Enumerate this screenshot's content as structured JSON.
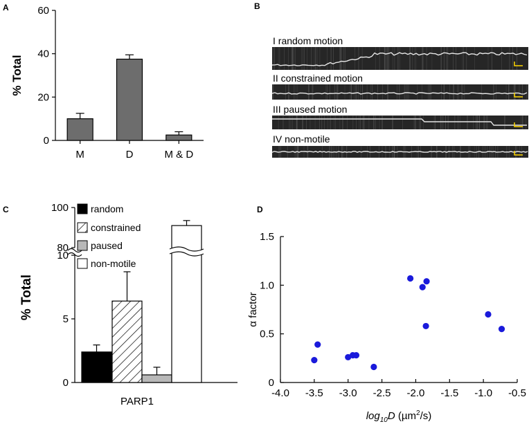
{
  "chart_data": [
    {
      "id": "A",
      "type": "bar",
      "title": "",
      "panel_letter": "A",
      "categories": [
        "M",
        "D",
        "M & D"
      ],
      "values": [
        10,
        37.5,
        2.5
      ],
      "errors": [
        2.5,
        2,
        1.5
      ],
      "xlabel": "",
      "ylabel": "% Total",
      "ylim": [
        0,
        60
      ],
      "yticks": [
        0,
        20,
        40,
        60
      ],
      "bar_color": "#6d6d6d"
    },
    {
      "id": "B",
      "type": "kymograph-panel",
      "panel_letter": "B",
      "rows": [
        {
          "label": "I random motion"
        },
        {
          "label": "II constrained motion"
        },
        {
          "label": "III paused motion"
        },
        {
          "label": "IV non-motile"
        }
      ],
      "scale_color": "#ffd700"
    },
    {
      "id": "C",
      "type": "bar",
      "panel_letter": "C",
      "categories": [
        "random",
        "constrained",
        "paused",
        "non-motile"
      ],
      "values": [
        2.4,
        6.4,
        0.6,
        91
      ],
      "errors": [
        0.55,
        2.3,
        0.6,
        2.5
      ],
      "xlabel": "PARP1",
      "ylabel": "% Total",
      "axis_break": {
        "lower": [
          0,
          10
        ],
        "upper": [
          80,
          100
        ]
      },
      "yticks_lower": [
        0,
        5,
        10
      ],
      "yticks_upper": [
        80,
        100
      ],
      "legend": [
        {
          "label": "random",
          "fill": "black"
        },
        {
          "label": "constrained",
          "fill": "hatch"
        },
        {
          "label": "paused",
          "fill": "#b8b8b8"
        },
        {
          "label": "non-motile",
          "fill": "white"
        }
      ]
    },
    {
      "id": "D",
      "type": "scatter",
      "panel_letter": "D",
      "xlabel_prefix": "log",
      "xlabel_sub": "10",
      "xlabel_var": "D",
      "xlabel_unit_pre": " (µm",
      "xlabel_unit_sup": "2",
      "xlabel_unit_post": "/s)",
      "ylabel": "α factor",
      "xlim": [
        -4.0,
        -0.5
      ],
      "ylim": [
        0,
        1.5
      ],
      "xticks": [
        -4.0,
        -3.5,
        -3.0,
        -2.5,
        -2.0,
        -1.5,
        -1.0,
        -0.5
      ],
      "xtick_labels": [
        "-4.0",
        "-3.5",
        "-3.0",
        "-2.5",
        "-2.0",
        "-1.5",
        "-1.0",
        "-0.5"
      ],
      "yticks": [
        0,
        0.5,
        1.0,
        1.5
      ],
      "ytick_labels": [
        "0",
        "0.5",
        "1.0",
        "1.5"
      ],
      "point_color": "#1a1adb",
      "points": [
        {
          "x": -3.5,
          "y": 0.23
        },
        {
          "x": -3.45,
          "y": 0.39
        },
        {
          "x": -3.0,
          "y": 0.26
        },
        {
          "x": -2.93,
          "y": 0.28
        },
        {
          "x": -2.88,
          "y": 0.28
        },
        {
          "x": -2.62,
          "y": 0.16
        },
        {
          "x": -2.08,
          "y": 1.07
        },
        {
          "x": -1.9,
          "y": 0.98
        },
        {
          "x": -1.84,
          "y": 1.04
        },
        {
          "x": -1.85,
          "y": 0.58
        },
        {
          "x": -0.93,
          "y": 0.7
        },
        {
          "x": -0.73,
          "y": 0.55
        }
      ]
    }
  ]
}
